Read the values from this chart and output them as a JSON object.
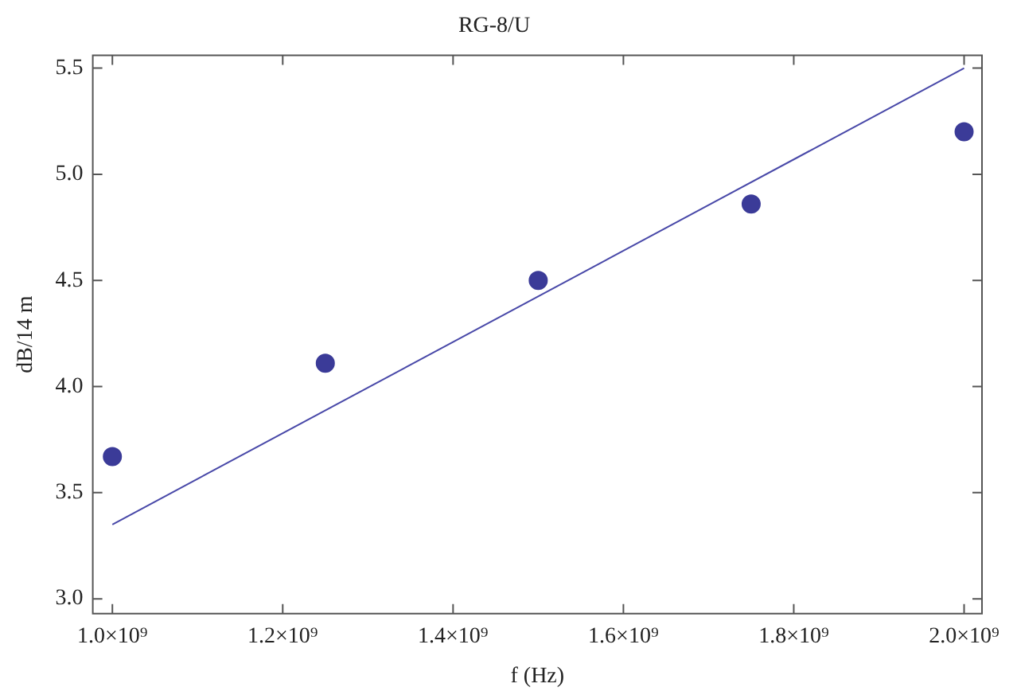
{
  "chart_data": {
    "type": "scatter",
    "title": "RG-8/U",
    "xlabel": "f (Hz)",
    "ylabel": "dB/14 m",
    "series": [
      {
        "color": "#3b3b98",
        "x": [
          1000000000,
          1250000000,
          1500000000,
          1750000000,
          2000000000
        ],
        "values": [
          3.67,
          4.11,
          4.5,
          4.86,
          5.2
        ],
        "marker": "circle"
      },
      {
        "type": "line",
        "color": "#4848a8",
        "x": [
          1000000000,
          2000000000
        ],
        "values": [
          3.35,
          5.5
        ],
        "marker": "none"
      }
    ],
    "xlim": [
      977000000,
      2021000000
    ],
    "xticks": [
      {
        "value": 1000000000,
        "label": "1.0×10⁹"
      },
      {
        "value": 1200000000,
        "label": "1.2×10⁹"
      },
      {
        "value": 1400000000,
        "label": "1.4×10⁹"
      },
      {
        "value": 1600000000,
        "label": "1.6×10⁹"
      },
      {
        "value": 1800000000,
        "label": "1.8×10⁹"
      },
      {
        "value": 2000000000,
        "label": "2.0×10⁹"
      }
    ],
    "ylim": [
      2.93,
      5.56
    ],
    "yticks": [
      {
        "value": 3,
        "label": "3.0"
      },
      3.5,
      {
        "value": 4,
        "label": "4.0"
      },
      4.5,
      {
        "value": 5,
        "label": "5.0"
      },
      5.5
    ],
    "grid": false,
    "legend": false
  }
}
